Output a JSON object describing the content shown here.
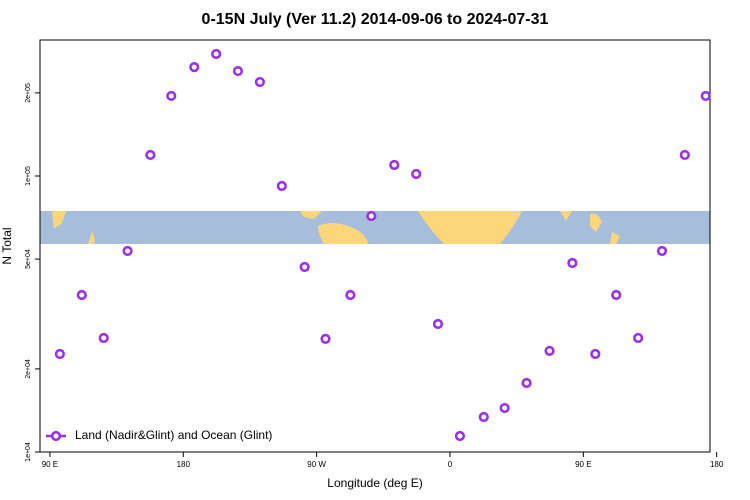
{
  "chart_data": {
    "type": "scatter",
    "title": "0-15N July (Ver 11.2)   2014-09-06 to 2024-07-31",
    "xlabel": "Longitude (deg E)",
    "ylabel": "N Total",
    "color": "#9b30e6",
    "log_y": true,
    "legend": "bottom-left",
    "xlim": [
      83.3,
      535.5
    ],
    "xticks": [
      {
        "value": 90,
        "label": "90 E"
      },
      180,
      {
        "value": 270,
        "label": "90 W"
      },
      {
        "value": 360,
        "label": "0"
      },
      {
        "value": 450,
        "label": "90 E"
      },
      {
        "value": 540,
        "label": "180"
      }
    ],
    "ylim": [
      10000,
      311000
    ],
    "yticks": [
      {
        "value": 10000,
        "label": "1e+04"
      },
      {
        "value": 20000,
        "label": "2e+04"
      },
      {
        "value": 50000,
        "label": "5e+04"
      },
      {
        "value": 100000,
        "label": "1e+05"
      },
      {
        "value": 200000,
        "label": "2e+05"
      }
    ],
    "series": [
      {
        "name": "Land (Nadir&Glint) and Ocean (Glint)",
        "color": "#9b30e6",
        "x": [
          96.7,
          111.5,
          126.3,
          142.4,
          157.8,
          171.9,
          187.4,
          202.2,
          216.9,
          231.7,
          246.5,
          261.9,
          276.0,
          292.8,
          306.9,
          322.4,
          337.2,
          351.9,
          366.7,
          382.8,
          396.9,
          411.7,
          427.2,
          442.6,
          458.1,
          472.2,
          487.0,
          503.1,
          518.5,
          532.6
        ],
        "values": [
          22650,
          37050,
          25880,
          53500,
          119200,
          195000,
          248000,
          276700,
          240000,
          219000,
          92000,
          46800,
          25700,
          37050,
          71600,
          109600,
          101700,
          29100,
          11430,
          13390,
          14430,
          17780,
          23240,
          48400,
          22650,
          37050,
          25880,
          53500,
          119200,
          195000
        ]
      }
    ]
  }
}
